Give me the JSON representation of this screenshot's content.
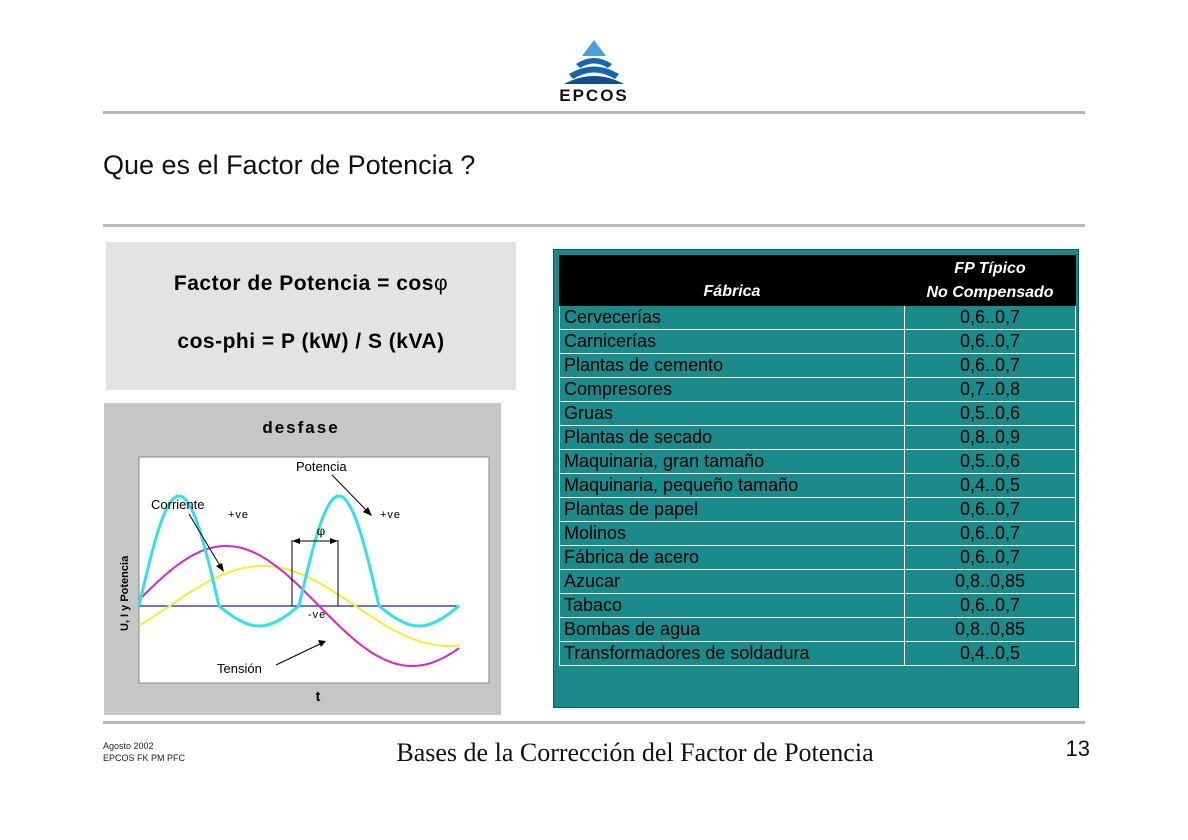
{
  "brand": {
    "name": "EPCOS",
    "colors": {
      "primary": "#1565b0",
      "light": "#4fa0d8"
    }
  },
  "slide": {
    "title": "Que es el Factor de Potencia ?"
  },
  "formulas": {
    "line1_prefix": "Factor de Potencia = cos",
    "line1_symbol": "φ",
    "line2": "cos-phi = P (kW) / S (kVA)"
  },
  "graph": {
    "title": "desfase",
    "y_label": "U, I y Potencia",
    "x_label": "t",
    "labels": {
      "potencia": "Potencia",
      "corriente": "Corriente",
      "tension": "Tensión",
      "phi": "φ",
      "pos_ve_left": "+ve",
      "pos_ve_right": "+ve",
      "neg_ve": "-ve"
    },
    "colors": {
      "potencia": "#33e0e6",
      "corriente": "#dd22cc",
      "tension": "#f2ef33",
      "axis": "#2222aa"
    }
  },
  "table": {
    "header_fabrica": "Fábrica",
    "header_fp_line1": "FP Típico",
    "header_fp_line2": "No Compensado",
    "rows": [
      {
        "fabrica": "Cervecerías",
        "fp": "0,6..0,7"
      },
      {
        "fabrica": "Carnicerías",
        "fp": "0,6..0,7"
      },
      {
        "fabrica": "Plantas de cemento",
        "fp": "0,6..0,7"
      },
      {
        "fabrica": "Compresores",
        "fp": "0,7..0,8"
      },
      {
        "fabrica": "Gruas",
        "fp": "0,5..0,6"
      },
      {
        "fabrica": "Plantas de secado",
        "fp": "0,8..0,9"
      },
      {
        "fabrica": "Maquinaria, gran tamaño",
        "fp": "0,5..0,6"
      },
      {
        "fabrica": "Maquinaria, pequeño tamaño",
        "fp": "0,4..0,5"
      },
      {
        "fabrica": "Plantas de papel",
        "fp": "0,6..0,7"
      },
      {
        "fabrica": "Molinos",
        "fp": "0,6..0,7"
      },
      {
        "fabrica": "Fábrica de acero",
        "fp": "0,6..0,7"
      },
      {
        "fabrica": "Azucar",
        "fp": "0,8..0,85"
      },
      {
        "fabrica": "Tabaco",
        "fp": "0,6..0,7"
      },
      {
        "fabrica": "Bombas de agua",
        "fp": "0,8..0,85"
      },
      {
        "fabrica": "Transformadores de soldadura",
        "fp": "0,4..0,5"
      }
    ],
    "colors": {
      "body": "#1a8a8a",
      "header": "#000000"
    }
  },
  "footer": {
    "date": "Agosto 2002",
    "dept": "EPCOS FK PM PFC",
    "title": "Bases de la Corrección del Factor de Potencia",
    "page": "13"
  }
}
